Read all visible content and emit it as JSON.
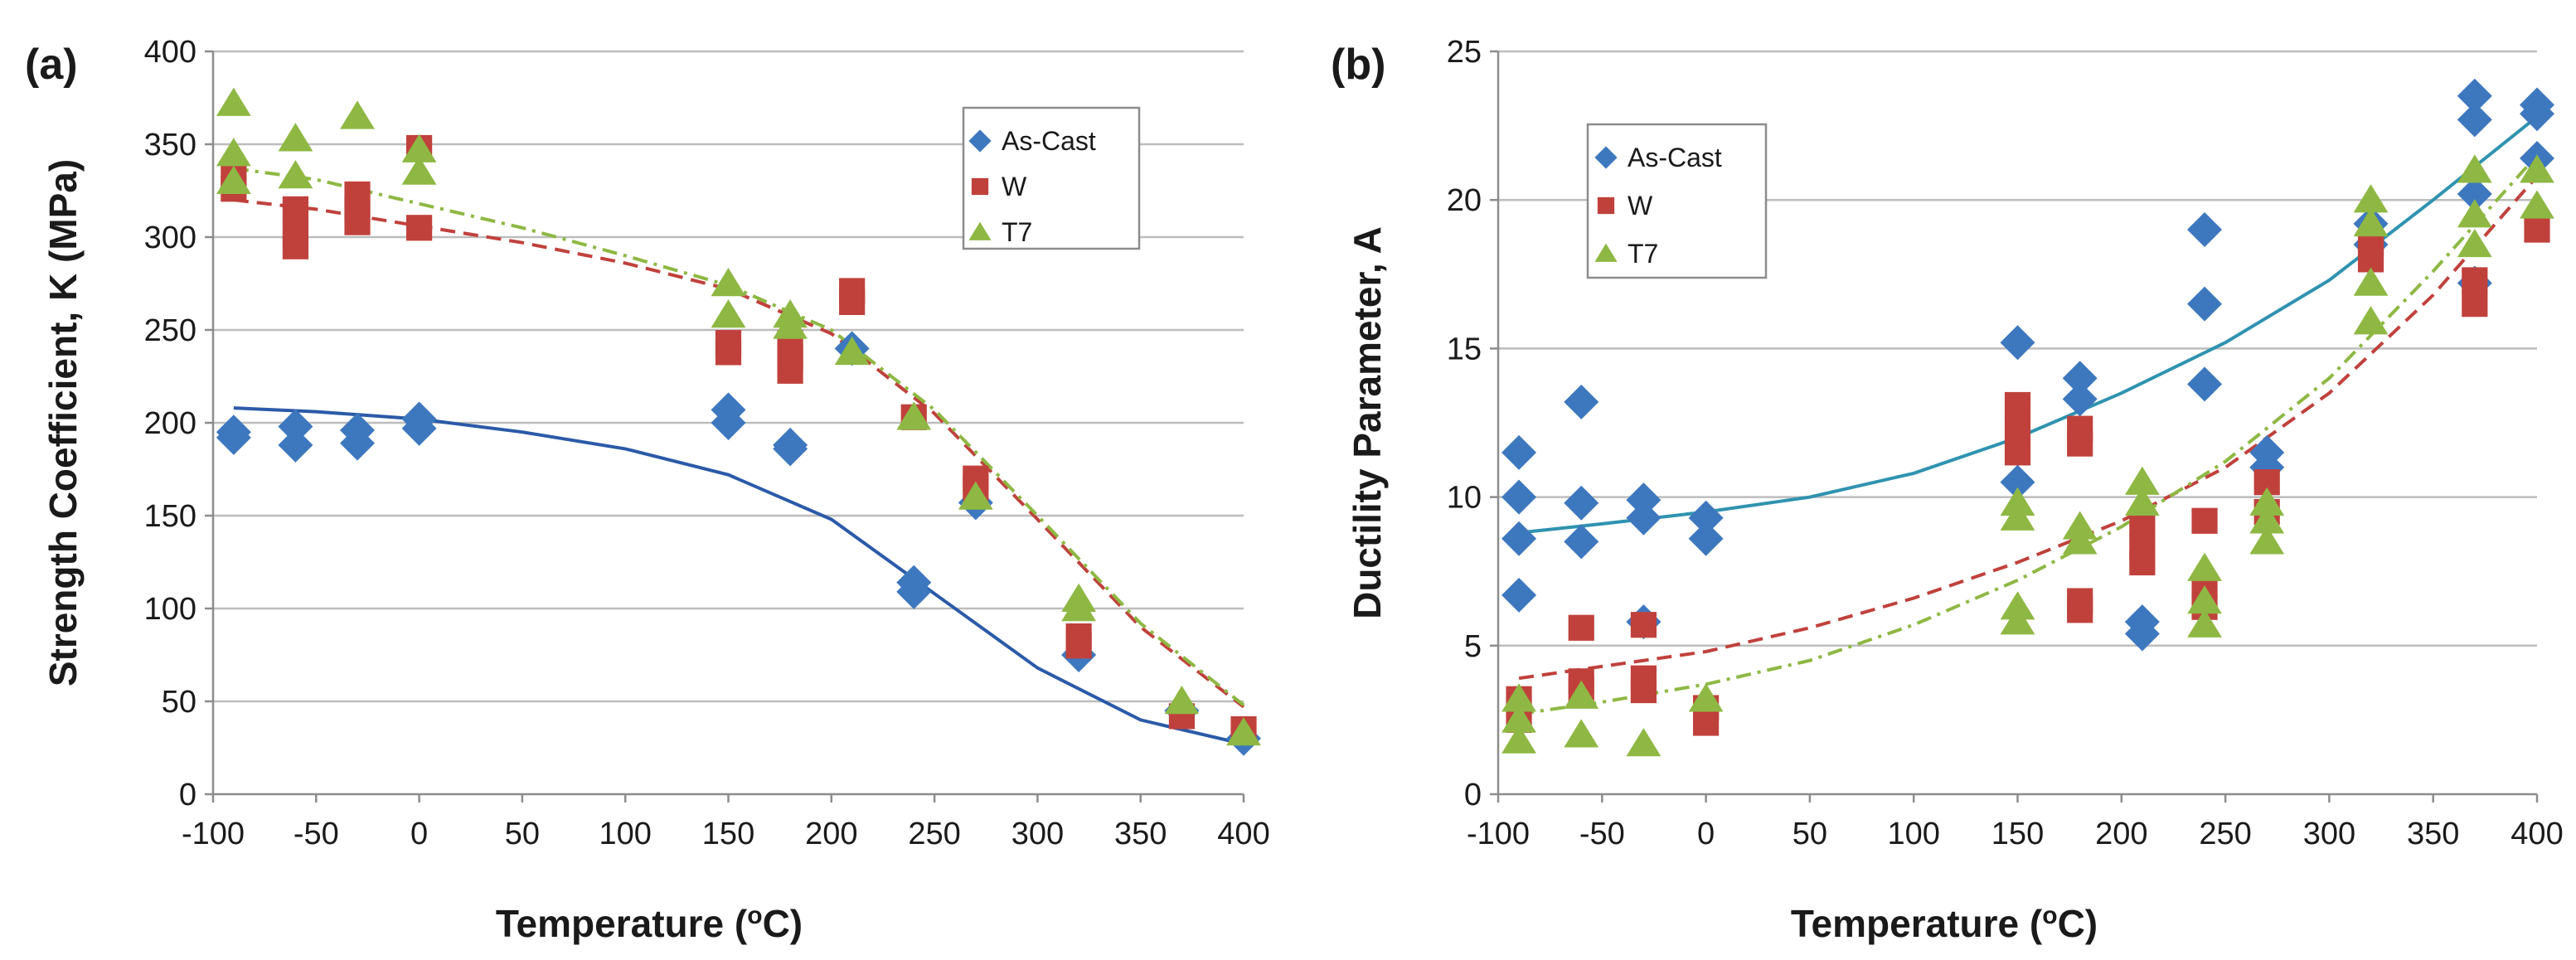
{
  "colors": {
    "as_cast": "#3d78bf",
    "w": "#c0413c",
    "t7": "#8eb843",
    "fit_as_cast_a": "#2b5aa8",
    "fit_as_cast_b": "#2f93b0",
    "fit_w": "#c0413c",
    "fit_t7": "#8eb843"
  },
  "chart_data": [
    {
      "type": "scatter",
      "panel_label": "(a)",
      "title": "",
      "xlabel": "Temperature",
      "xlabel_sup": "o",
      "xlabel_unit": "C)",
      "ylabel": "Strength Coefficient, K (MPa)",
      "xlim": [
        -100,
        400
      ],
      "ylim": [
        0,
        400
      ],
      "xticks": [
        "-100",
        "-50",
        "0",
        "50",
        "100",
        "150",
        "200",
        "250",
        "300",
        "350",
        "400"
      ],
      "yticks": [
        "0",
        "50",
        "100",
        "150",
        "200",
        "250",
        "300",
        "350",
        "400"
      ],
      "grid": "horizontal",
      "legend_position": "top-right",
      "series": [
        {
          "name": "As-Cast",
          "marker": "diamond",
          "points": [
            [
              -90,
              192
            ],
            [
              -90,
              195
            ],
            [
              -60,
              188
            ],
            [
              -60,
              198
            ],
            [
              -30,
              189
            ],
            [
              -30,
              196
            ],
            [
              0,
              197
            ],
            [
              0,
              202
            ],
            [
              150,
              200
            ],
            [
              150,
              207
            ],
            [
              180,
              186
            ],
            [
              180,
              188
            ],
            [
              210,
              240
            ],
            [
              240,
              109
            ],
            [
              240,
              114
            ],
            [
              270,
              157
            ],
            [
              320,
              75
            ],
            [
              370,
              45
            ],
            [
              400,
              30
            ]
          ]
        },
        {
          "name": "W",
          "marker": "square",
          "points": [
            [
              -90,
              326
            ],
            [
              -90,
              333
            ],
            [
              -60,
              295
            ],
            [
              -60,
              302
            ],
            [
              -60,
              315
            ],
            [
              -30,
              308
            ],
            [
              -30,
              315
            ],
            [
              -30,
              323
            ],
            [
              0,
              305
            ],
            [
              0,
              348
            ],
            [
              150,
              238
            ],
            [
              150,
              243
            ],
            [
              180,
              228
            ],
            [
              180,
              235
            ],
            [
              180,
              243
            ],
            [
              210,
              265
            ],
            [
              210,
              271
            ],
            [
              240,
              203
            ],
            [
              270,
              165
            ],
            [
              270,
              170
            ],
            [
              320,
              80
            ],
            [
              320,
              85
            ],
            [
              370,
              42
            ],
            [
              400,
              35
            ]
          ]
        },
        {
          "name": "T7",
          "marker": "triangle",
          "points": [
            [
              -90,
              330
            ],
            [
              -90,
              345
            ],
            [
              -90,
              372
            ],
            [
              -60,
              333
            ],
            [
              -60,
              353
            ],
            [
              -30,
              365
            ],
            [
              0,
              335
            ],
            [
              0,
              347
            ],
            [
              150,
              258
            ],
            [
              150,
              275
            ],
            [
              180,
              252
            ],
            [
              180,
              258
            ],
            [
              210,
              238
            ],
            [
              240,
              203
            ],
            [
              270,
              160
            ],
            [
              320,
              100
            ],
            [
              320,
              105
            ],
            [
              370,
              50
            ],
            [
              400,
              33
            ]
          ]
        }
      ],
      "fits": [
        {
          "series": "As-Cast",
          "style": "solid",
          "points": [
            [
              -90,
              208
            ],
            [
              -50,
              206
            ],
            [
              0,
              202
            ],
            [
              50,
              195
            ],
            [
              100,
              186
            ],
            [
              150,
              172
            ],
            [
              200,
              148
            ],
            [
              250,
              108
            ],
            [
              300,
              68
            ],
            [
              350,
              40
            ],
            [
              400,
              27
            ]
          ]
        },
        {
          "series": "W",
          "style": "dash",
          "points": [
            [
              -90,
              320
            ],
            [
              -50,
              315
            ],
            [
              0,
              306
            ],
            [
              50,
              297
            ],
            [
              100,
              286
            ],
            [
              150,
              272
            ],
            [
              200,
              248
            ],
            [
              250,
              205
            ],
            [
              300,
              148
            ],
            [
              350,
              90
            ],
            [
              400,
              47
            ]
          ]
        },
        {
          "series": "T7",
          "style": "dash-dot",
          "points": [
            [
              -90,
              337
            ],
            [
              -50,
              331
            ],
            [
              0,
              318
            ],
            [
              50,
              305
            ],
            [
              100,
              290
            ],
            [
              150,
              274
            ],
            [
              200,
              250
            ],
            [
              250,
              207
            ],
            [
              300,
              150
            ],
            [
              350,
              92
            ],
            [
              400,
              48
            ]
          ]
        }
      ]
    },
    {
      "type": "scatter",
      "panel_label": "(b)",
      "title": "",
      "xlabel": "Temperature",
      "xlabel_sup": "o",
      "xlabel_unit": "C)",
      "ylabel": "Ductility Parameter, A",
      "xlim": [
        -100,
        400
      ],
      "ylim": [
        0,
        25
      ],
      "xticks": [
        "-100",
        "-50",
        "0",
        "50",
        "100",
        "150",
        "200",
        "250",
        "300",
        "350",
        "400"
      ],
      "yticks": [
        "0",
        "5",
        "10",
        "15",
        "20",
        "25"
      ],
      "grid": "horizontal",
      "legend_position": "top-left",
      "series": [
        {
          "name": "As-Cast",
          "marker": "diamond",
          "points": [
            [
              -90,
              6.7
            ],
            [
              -90,
              8.6
            ],
            [
              -90,
              10
            ],
            [
              -90,
              11.5
            ],
            [
              -60,
              8.5
            ],
            [
              -60,
              9.8
            ],
            [
              -60,
              13.2
            ],
            [
              -30,
              5.8
            ],
            [
              -30,
              9.3
            ],
            [
              -30,
              9.9
            ],
            [
              0,
              8.6
            ],
            [
              0,
              9.3
            ],
            [
              150,
              10.5
            ],
            [
              150,
              15.2
            ],
            [
              180,
              13.3
            ],
            [
              180,
              14
            ],
            [
              210,
              5.4
            ],
            [
              210,
              5.8
            ],
            [
              240,
              13.8
            ],
            [
              240,
              16.5
            ],
            [
              240,
              19
            ],
            [
              270,
              11
            ],
            [
              270,
              11.5
            ],
            [
              320,
              18.5
            ],
            [
              320,
              19.2
            ],
            [
              370,
              17.2
            ],
            [
              370,
              20.2
            ],
            [
              370,
              22.7
            ],
            [
              370,
              23.5
            ],
            [
              400,
              21.4
            ],
            [
              400,
              22.9
            ],
            [
              400,
              23.2
            ]
          ]
        },
        {
          "name": "W",
          "marker": "square",
          "points": [
            [
              -90,
              2.5
            ],
            [
              -90,
              3.2
            ],
            [
              -60,
              3.5
            ],
            [
              -60,
              3.8
            ],
            [
              -60,
              5.6
            ],
            [
              -30,
              3.5
            ],
            [
              -30,
              3.9
            ],
            [
              -30,
              5.7
            ],
            [
              0,
              2.4
            ],
            [
              0,
              2.9
            ],
            [
              150,
              11.5
            ],
            [
              150,
              12.3
            ],
            [
              150,
              13.1
            ],
            [
              180,
              6.2
            ],
            [
              180,
              6.5
            ],
            [
              180,
              11.8
            ],
            [
              180,
              12.3
            ],
            [
              210,
              7.8
            ],
            [
              210,
              8.3
            ],
            [
              210,
              9.1
            ],
            [
              240,
              6.3
            ],
            [
              240,
              7
            ],
            [
              240,
              9.2
            ],
            [
              270,
              9.5
            ],
            [
              270,
              10.5
            ],
            [
              320,
              18
            ],
            [
              320,
              18.5
            ],
            [
              370,
              16.5
            ],
            [
              370,
              17.3
            ],
            [
              400,
              19
            ]
          ]
        },
        {
          "name": "T7",
          "marker": "triangle",
          "points": [
            [
              -90,
              1.8
            ],
            [
              -90,
              2.5
            ],
            [
              -90,
              3.2
            ],
            [
              -60,
              2
            ],
            [
              -60,
              3.3
            ],
            [
              -30,
              1.7
            ],
            [
              0,
              3.2
            ],
            [
              150,
              5.8
            ],
            [
              150,
              6.3
            ],
            [
              150,
              9.3
            ],
            [
              150,
              9.8
            ],
            [
              180,
              8.5
            ],
            [
              180,
              9
            ],
            [
              210,
              9.8
            ],
            [
              210,
              10.5
            ],
            [
              240,
              5.7
            ],
            [
              240,
              6.5
            ],
            [
              240,
              7.6
            ],
            [
              270,
              8.5
            ],
            [
              270,
              9.2
            ],
            [
              270,
              9.8
            ],
            [
              320,
              15.9
            ],
            [
              320,
              17.2
            ],
            [
              320,
              19.2
            ],
            [
              320,
              20
            ],
            [
              370,
              18.5
            ],
            [
              370,
              19.5
            ],
            [
              370,
              21
            ],
            [
              400,
              19.8
            ],
            [
              400,
              21
            ]
          ]
        }
      ],
      "fits": [
        {
          "series": "As-Cast",
          "style": "solid",
          "points": [
            [
              -90,
              8.8
            ],
            [
              -50,
              9.1
            ],
            [
              0,
              9.5
            ],
            [
              50,
              10
            ],
            [
              100,
              10.8
            ],
            [
              150,
              12
            ],
            [
              200,
              13.5
            ],
            [
              250,
              15.2
            ],
            [
              300,
              17.3
            ],
            [
              350,
              20
            ],
            [
              400,
              22.8
            ]
          ]
        },
        {
          "series": "W",
          "style": "dash",
          "points": [
            [
              -90,
              3.9
            ],
            [
              -50,
              4.3
            ],
            [
              0,
              4.8
            ],
            [
              50,
              5.6
            ],
            [
              100,
              6.6
            ],
            [
              150,
              7.8
            ],
            [
              200,
              9.2
            ],
            [
              250,
              11
            ],
            [
              300,
              13.5
            ],
            [
              350,
              16.8
            ],
            [
              400,
              20.8
            ]
          ]
        },
        {
          "series": "T7",
          "style": "dash-dot",
          "points": [
            [
              -90,
              2.7
            ],
            [
              -50,
              3.1
            ],
            [
              0,
              3.7
            ],
            [
              50,
              4.5
            ],
            [
              100,
              5.7
            ],
            [
              150,
              7.2
            ],
            [
              200,
              9
            ],
            [
              250,
              11.2
            ],
            [
              300,
              14
            ],
            [
              350,
              17.6
            ],
            [
              400,
              21.5
            ]
          ]
        }
      ]
    }
  ]
}
